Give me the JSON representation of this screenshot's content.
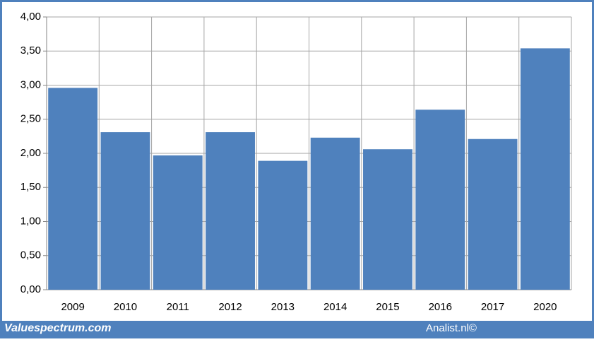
{
  "chart_data": {
    "type": "bar",
    "categories": [
      "2009",
      "2010",
      "2011",
      "2012",
      "2013",
      "2014",
      "2015",
      "2016",
      "2017",
      "2020"
    ],
    "values": [
      2.96,
      2.31,
      1.97,
      2.31,
      1.89,
      2.23,
      2.06,
      2.64,
      2.21,
      3.54
    ],
    "color": "#4f81bd",
    "ylim": [
      0,
      4
    ],
    "yticks": [
      {
        "value": 0,
        "label": "0,00"
      },
      {
        "value": 0.5,
        "label": "0,50"
      },
      {
        "value": 1,
        "label": "1,00"
      },
      {
        "value": 1.5,
        "label": "1,50"
      },
      {
        "value": 2,
        "label": "2,00"
      },
      {
        "value": 2.5,
        "label": "2,50"
      },
      {
        "value": 3,
        "label": "3,00"
      },
      {
        "value": 3.5,
        "label": "3,50"
      },
      {
        "value": 4,
        "label": "4,00"
      }
    ],
    "grid": true,
    "footer_left": "Valuespectrum.com",
    "footer_right": "Analist.nl©"
  }
}
